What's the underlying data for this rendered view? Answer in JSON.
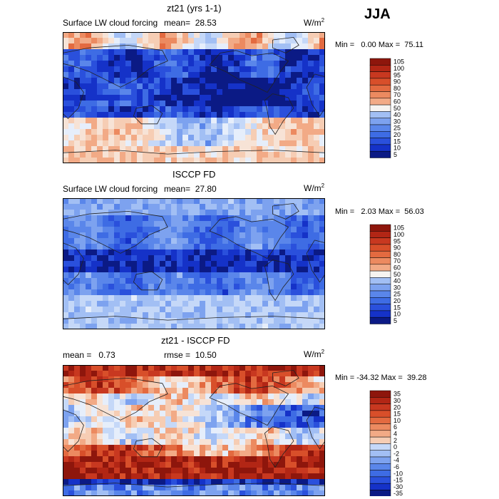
{
  "season": "JJA",
  "unit_prefix": "W/m",
  "unit_exp": "2",
  "colors": {
    "below": [
      "#0b1a85",
      "#1532c8",
      "#2a50dc",
      "#3e6ce4",
      "#5a86ea",
      "#7da2ef",
      "#a2bff4",
      "#c5d8f8",
      "#e6eefb"
    ],
    "above": [
      "#f7e3d6",
      "#f6cdb4",
      "#f2aa86",
      "#ec8a60",
      "#e36a40",
      "#d84f2a",
      "#c83820",
      "#b22615",
      "#8e160c"
    ],
    "neutral": "#f6f3f0"
  },
  "chart_data": [
    {
      "type": "heatmap",
      "title": "zt21 (yrs 1-1)",
      "field_name": "Surface LW cloud forcing",
      "mean_label": "mean=",
      "mean": "28.53",
      "min_label": "Min =",
      "min": "0.00",
      "max_label": "Max =",
      "max": "75.11",
      "colorbar": [
        "105",
        "100",
        "95",
        "90",
        "80",
        "70",
        "60",
        "50",
        "40",
        "30",
        "25",
        "20",
        "15",
        "10",
        "5"
      ]
    },
    {
      "type": "heatmap",
      "title": "ISCCP FD",
      "field_name": "Surface LW cloud forcing",
      "mean_label": "mean=",
      "mean": "27.80",
      "min_label": "Min =",
      "min": "2.03",
      "max_label": "Max =",
      "max": "56.03",
      "colorbar": [
        "105",
        "100",
        "95",
        "90",
        "80",
        "70",
        "60",
        "50",
        "40",
        "30",
        "25",
        "20",
        "15",
        "10",
        "5"
      ]
    },
    {
      "type": "heatmap",
      "title": "zt21 - ISCCP FD",
      "mean_label": "mean =",
      "mean": "0.73",
      "rmse_label": "rmse =",
      "rmse": "10.50",
      "min_label": "Min =",
      "min": "-34.32",
      "max_label": "Max =",
      "max": "39.28",
      "colorbar": [
        "35",
        "30",
        "20",
        "15",
        "10",
        "6",
        "4",
        "2",
        "0",
        "-2",
        "-4",
        "-6",
        "-10",
        "-15",
        "-30",
        "-35"
      ]
    }
  ]
}
